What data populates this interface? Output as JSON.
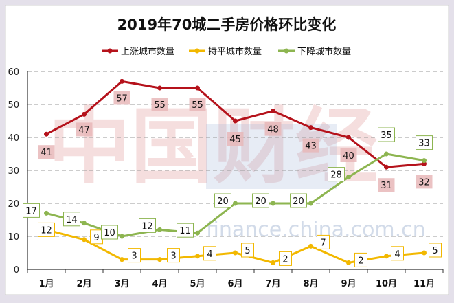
{
  "chart_data": {
    "type": "line",
    "title": "2019年70城二手房价格环比变化",
    "categories": [
      "1月",
      "2月",
      "3月",
      "4月",
      "5月",
      "6月",
      "7月",
      "8月",
      "9月",
      "10月",
      "11月"
    ],
    "ylim": [
      0,
      60
    ],
    "yticks": [
      0,
      10,
      20,
      30,
      40,
      50,
      60
    ],
    "grid": "horizontal dashed",
    "legend_position": "top-center",
    "series": [
      {
        "name": "上涨城市数量",
        "color": "#b5121b",
        "values": [
          41,
          47,
          57,
          55,
          55,
          45,
          48,
          43,
          40,
          31,
          32
        ]
      },
      {
        "name": "持平城市数量",
        "color": "#f2b800",
        "values": [
          12,
          9,
          3,
          3,
          4,
          5,
          2,
          7,
          2,
          4,
          5
        ]
      },
      {
        "name": "下降城市数量",
        "color": "#8db550",
        "values": [
          17,
          14,
          10,
          12,
          11,
          20,
          20,
          20,
          28,
          35,
          33
        ]
      }
    ]
  },
  "watermark": {
    "text": "中国财经",
    "url_text": "finance.china.com.cn"
  }
}
